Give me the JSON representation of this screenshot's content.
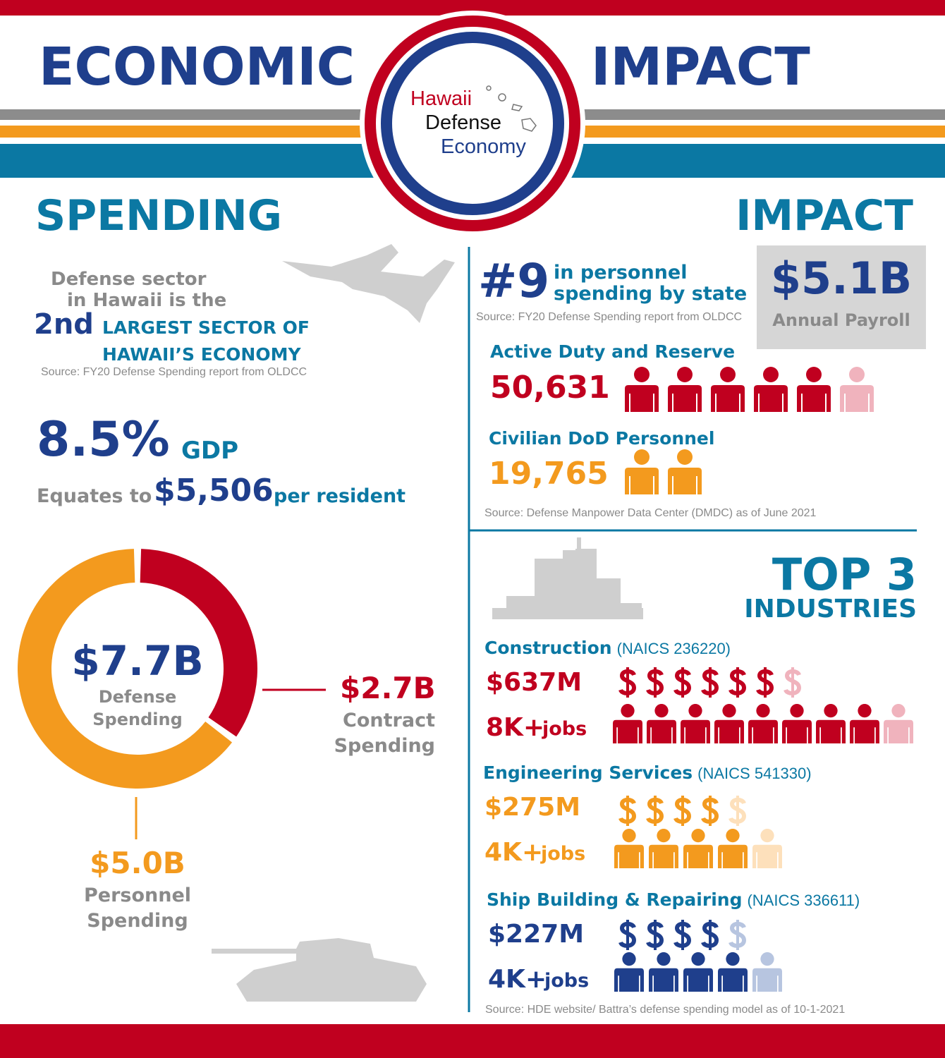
{
  "header": {
    "title_left": "ECONOMIC",
    "title_right": "IMPACT",
    "logo": [
      "Hawaii",
      "Defense",
      "Economy"
    ]
  },
  "spending": {
    "heading": "SPENDING",
    "sector": {
      "line1": "Defense sector",
      "line2": "in Hawaii is the",
      "rank": "2nd",
      "text1": "LARGEST SECTOR OF",
      "text2": "HAWAII’S ECONOMY",
      "source": "Source: FY20 Defense Spending report from OLDCC"
    },
    "gdp": {
      "value": "8.5%",
      "unit": "GDP",
      "prefix": "Equates to",
      "amount": "$5,506",
      "suffix": "per resident"
    }
  },
  "chart_data": {
    "type": "donut",
    "center_label": "$7.7B",
    "center_text": "Defense Spending",
    "categories": [
      "Contract Spending",
      "Personnel Spending"
    ],
    "values": [
      2.7,
      5.0
    ],
    "value_labels": [
      "$2.7B",
      "$5.0B"
    ],
    "colors": [
      "#c0001f",
      "#f39a1e"
    ]
  },
  "impact": {
    "heading": "IMPACT",
    "rank": {
      "value": "#9",
      "text1": "in personnel",
      "text2": "spending by state",
      "source": "Source: FY20 Defense Spending report from OLDCC"
    },
    "payroll": {
      "value": "$5.1B",
      "label": "Annual Payroll"
    },
    "active": {
      "label": "Active Duty and Reserve",
      "value": "50,631"
    },
    "civilian": {
      "label": "Civilian DoD Personnel",
      "value": "19,765"
    },
    "source": "Source: Defense Manpower Data Center (DMDC) as of June 2021"
  },
  "industries": {
    "heading1": "TOP 3",
    "heading2": "INDUSTRIES",
    "items": [
      {
        "name": "Construction",
        "code": "(NAICS 236220)",
        "amount": "$637M",
        "jobs": "8K+",
        "jobs_unit": "jobs"
      },
      {
        "name": "Engineering Services",
        "code": "(NAICS 541330)",
        "amount": "$275M",
        "jobs": "4K+",
        "jobs_unit": "jobs"
      },
      {
        "name": "Ship Building & Repairing",
        "code": "(NAICS 336611)",
        "amount": "$227M",
        "jobs": "4K+",
        "jobs_unit": "jobs"
      }
    ],
    "source": "Source:  HDE website/ Battra’s defense spending model as of 10-1-2021"
  }
}
